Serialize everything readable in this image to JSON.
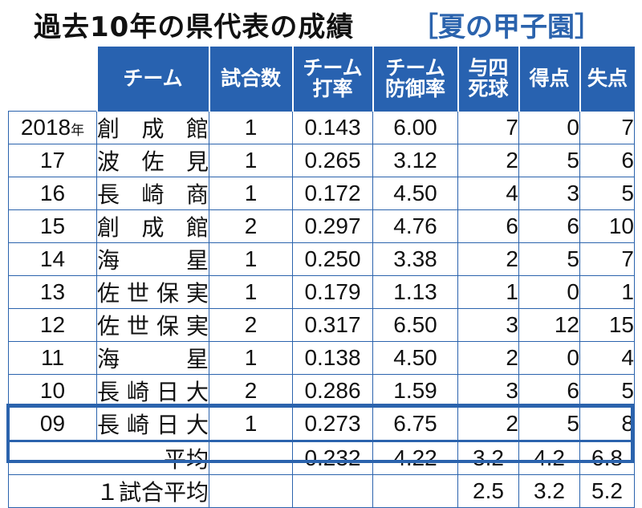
{
  "title": {
    "main": "過去10年の県代表の成績",
    "sub": "［夏の甲子園］"
  },
  "headers": [
    "",
    "チーム",
    "試合数",
    "チーム\n打率",
    "チーム\n防御率",
    "与四\n死球",
    "得点",
    "失点"
  ],
  "rows": [
    {
      "year": "2018",
      "year_suffix": "年",
      "team": "創成館",
      "games": "1",
      "avg": "0.143",
      "era": "6.00",
      "bb": "7",
      "runs": "0",
      "allowed": "7"
    },
    {
      "year": "17",
      "year_suffix": "",
      "team": "波佐見",
      "games": "1",
      "avg": "0.265",
      "era": "3.12",
      "bb": "2",
      "runs": "5",
      "allowed": "6"
    },
    {
      "year": "16",
      "year_suffix": "",
      "team": "長崎商",
      "games": "1",
      "avg": "0.172",
      "era": "4.50",
      "bb": "4",
      "runs": "3",
      "allowed": "5"
    },
    {
      "year": "15",
      "year_suffix": "",
      "team": "創成館",
      "games": "2",
      "avg": "0.297",
      "era": "4.76",
      "bb": "6",
      "runs": "6",
      "allowed": "10"
    },
    {
      "year": "14",
      "year_suffix": "",
      "team": "海星",
      "games": "1",
      "avg": "0.250",
      "era": "3.38",
      "bb": "2",
      "runs": "5",
      "allowed": "7"
    },
    {
      "year": "13",
      "year_suffix": "",
      "team": "佐世保実",
      "games": "1",
      "avg": "0.179",
      "era": "1.13",
      "bb": "1",
      "runs": "0",
      "allowed": "1"
    },
    {
      "year": "12",
      "year_suffix": "",
      "team": "佐世保実",
      "games": "2",
      "avg": "0.317",
      "era": "6.50",
      "bb": "3",
      "runs": "12",
      "allowed": "15"
    },
    {
      "year": "11",
      "year_suffix": "",
      "team": "海星",
      "games": "1",
      "avg": "0.138",
      "era": "4.50",
      "bb": "2",
      "runs": "0",
      "allowed": "4"
    },
    {
      "year": "10",
      "year_suffix": "",
      "team": "長崎日大",
      "games": "2",
      "avg": "0.286",
      "era": "1.59",
      "bb": "3",
      "runs": "6",
      "allowed": "5"
    },
    {
      "year": "09",
      "year_suffix": "",
      "team": "長崎日大",
      "games": "1",
      "avg": "0.273",
      "era": "6.75",
      "bb": "2",
      "runs": "5",
      "allowed": "8"
    }
  ],
  "average": {
    "label": "平均",
    "games": "",
    "avg": "0.232",
    "era": "4.22",
    "bb": "3.2",
    "runs": "4.2",
    "allowed": "6.8"
  },
  "per_game": {
    "label": "１試合平均",
    "games": "",
    "avg": "",
    "era": "",
    "bb": "2.5",
    "runs": "3.2",
    "allowed": "5.2"
  }
}
